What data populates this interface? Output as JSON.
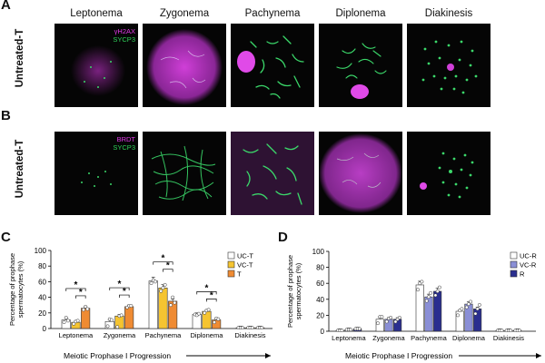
{
  "panel_a": {
    "letter": "A",
    "row_label": "Untreated-T",
    "stages": [
      "Leptonema",
      "Zygonema",
      "Pachynema",
      "Diplonema",
      "Diakinesis"
    ],
    "channel_1": {
      "label": "γH2AX",
      "color": "#e23ae8"
    },
    "channel_2": {
      "label": "SYCP3",
      "color": "#2fd45a"
    }
  },
  "panel_b": {
    "letter": "B",
    "row_label": "Untreated-T",
    "channel_1": {
      "label": "BRDT",
      "color": "#e23ae8"
    },
    "channel_2": {
      "label": "SYCP3",
      "color": "#2fd45a"
    }
  },
  "chart_data": [
    {
      "panel": "C",
      "type": "bar",
      "ylabel": "Percentage of prophase spermatocytes (%)",
      "xlabel": "Meiotic Prophase I Progression",
      "ylim": [
        0,
        100
      ],
      "yticks": [
        "0",
        "20",
        "40",
        "60",
        "80",
        "100"
      ],
      "categories": [
        "Leptonema",
        "Zygonema",
        "Pachynema",
        "Diplonema",
        "Diakinesis"
      ],
      "series": [
        {
          "name": "UC-T",
          "color": "#ffffff",
          "values": [
            11,
            9,
            61,
            18,
            1
          ]
        },
        {
          "name": "VC-T",
          "color": "#f5c431",
          "values": [
            8,
            16,
            52,
            22,
            1
          ]
        },
        {
          "name": "T",
          "color": "#ef8b33",
          "values": [
            26,
            28,
            35,
            11,
            1
          ]
        }
      ],
      "points": [
        [
          [
            8,
            14,
            10
          ],
          [
            6,
            9,
            10
          ],
          [
            24,
            28,
            25
          ],
          [
            3,
            12,
            11
          ],
          [
            2,
            16,
            17
          ],
          [
            27,
            29,
            29
          ],
          [
            58,
            62,
            60
          ],
          [
            48,
            52,
            56
          ],
          [
            30,
            40,
            33
          ],
          [
            18,
            17,
            19
          ],
          [
            20,
            23,
            24
          ],
          [
            8,
            13,
            12
          ],
          [
            1,
            1,
            1
          ],
          [
            1,
            1,
            1
          ],
          [
            1,
            1,
            1
          ]
        ]
      ],
      "significance": [
        {
          "label": "*",
          "from": 0,
          "to": 2,
          "group": 0
        },
        {
          "label": "*",
          "from": 1,
          "to": 2,
          "group": 0
        },
        {
          "label": "*",
          "from": 0,
          "to": 2,
          "group": 1
        },
        {
          "label": "*",
          "from": 1,
          "to": 2,
          "group": 1
        },
        {
          "label": "*",
          "from": 0,
          "to": 2,
          "group": 2
        },
        {
          "label": "*",
          "from": 1,
          "to": 2,
          "group": 2
        },
        {
          "label": "*",
          "from": 0,
          "to": 2,
          "group": 3
        },
        {
          "label": "*",
          "from": 1,
          "to": 2,
          "group": 3
        }
      ],
      "legend_position": "top-right"
    },
    {
      "panel": "D",
      "type": "bar",
      "ylabel": "Percentage of prophase spermatocytes (%)",
      "xlabel": "Meiotic Prophase I Progression",
      "ylim": [
        0,
        100
      ],
      "yticks": [
        "0",
        "20",
        "40",
        "60",
        "80",
        "100"
      ],
      "categories": [
        "Leptonema",
        "Zygonema",
        "Pachynema",
        "Diplonema",
        "Diakinesis"
      ],
      "series": [
        {
          "name": "UC-R",
          "color": "#ffffff",
          "values": [
            1,
            15,
            58,
            25,
            1
          ]
        },
        {
          "name": "VC-R",
          "color": "#8a8fd6",
          "values": [
            2,
            15,
            43,
            34,
            1
          ]
        },
        {
          "name": "R",
          "color": "#2a2e8f",
          "values": [
            3,
            15,
            50,
            28,
            1
          ]
        }
      ],
      "points": [
        [
          [
            1,
            1,
            1
          ],
          [
            2,
            2,
            2
          ],
          [
            3,
            3,
            3
          ],
          [
            10,
            18,
            18
          ],
          [
            12,
            16,
            17
          ],
          [
            12,
            15,
            17
          ],
          [
            52,
            60,
            62
          ],
          [
            38,
            43,
            48
          ],
          [
            45,
            50,
            55
          ],
          [
            20,
            26,
            28
          ],
          [
            30,
            34,
            37
          ],
          [
            22,
            28,
            33
          ],
          [
            1,
            1,
            1
          ],
          [
            1,
            1,
            1
          ],
          [
            1,
            1,
            1
          ]
        ]
      ],
      "legend_position": "top-right"
    }
  ],
  "panel_c": {
    "letter": "C"
  },
  "panel_d": {
    "letter": "D"
  }
}
